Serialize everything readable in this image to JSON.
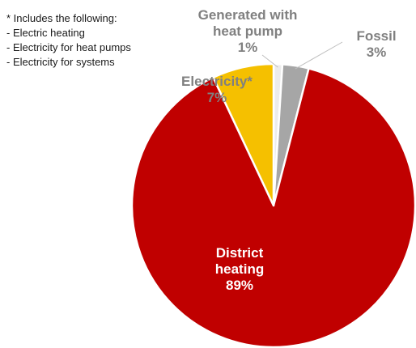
{
  "note": {
    "heading": "* Includes the following:",
    "items": [
      "- Electric heating",
      "- Electricity for heat pumps",
      "- Electricity for systems"
    ]
  },
  "chart_data": {
    "type": "pie",
    "slices": [
      {
        "name": "Generated with heat pump",
        "label_lines": [
          "Generated with",
          "heat pump"
        ],
        "value": 1,
        "value_label": "1%",
        "color": "#ececec"
      },
      {
        "name": "Fossil",
        "label_lines": [
          "Fossil"
        ],
        "value": 3,
        "value_label": "3%",
        "color": "#a6a6a6"
      },
      {
        "name": "District heating",
        "label_lines": [
          "District",
          "heating"
        ],
        "value": 89,
        "value_label": "89%",
        "color": "#c00000"
      },
      {
        "name": "Electricity*",
        "label_lines": [
          "Electricity*"
        ],
        "value": 7,
        "value_label": "7%",
        "color": "#f5c000"
      }
    ],
    "label_colors": {
      "dark": "#808080",
      "light": "#ffffff"
    }
  }
}
